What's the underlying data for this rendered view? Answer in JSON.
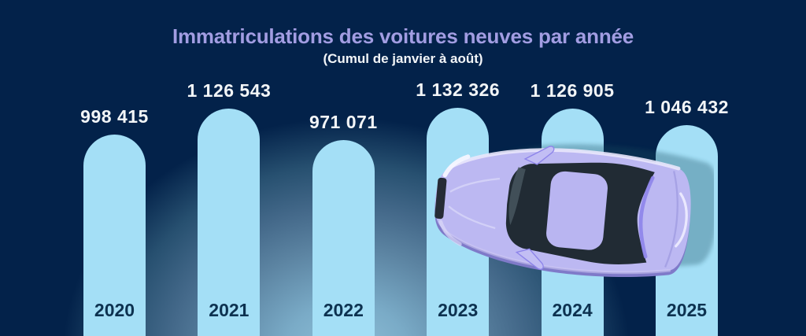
{
  "chart_data": {
    "type": "bar",
    "title": "Immatriculations des voitures neuves par année",
    "subtitle": "(Cumul de janvier à août)",
    "categories": [
      "2020",
      "2021",
      "2022",
      "2023",
      "2024",
      "2025"
    ],
    "values": [
      998415,
      1126543,
      971071,
      1132326,
      1126905,
      1046432
    ],
    "value_labels": [
      "998 415",
      "1 126 543",
      "971 071",
      "1 132 326",
      "1 126 905",
      "1 046 432"
    ],
    "orientation": "vertical",
    "grid": false,
    "legend": null,
    "ylim": [
      0,
      1200000
    ],
    "bar_color": "#a4dff6",
    "value_label_color": "#f2f5f7",
    "category_label_color": "#0d3250",
    "title_color": "#a29de2",
    "subtitle_color": "#f2f5f8",
    "background_color": "#03224a",
    "background_glow_color": "#8fc0d8"
  },
  "illustration": {
    "name": "car-top-view",
    "body_color": "#bcb8f2",
    "glass_color": "#212b34",
    "accent_color": "#8d84ea",
    "highlight_color": "#eceafc",
    "shadow_silhouette_color": "#174b5e"
  }
}
